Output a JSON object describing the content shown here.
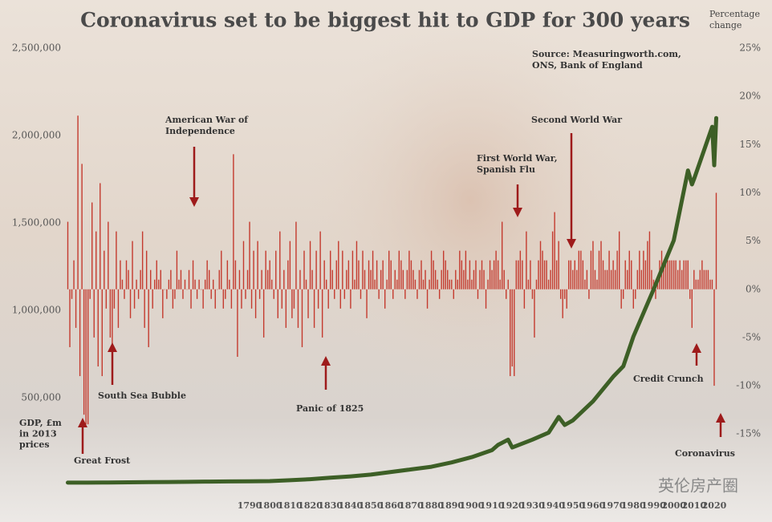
{
  "chart_data": {
    "type": "bar-line",
    "title": "Coronavirus set to be biggest hit to GDP for 300 years",
    "y_label": [
      "GDP, £m",
      "in 2013",
      "prices"
    ],
    "y2_label": [
      "Percentage",
      "change"
    ],
    "source": [
      "Source: Measuringworth.com,",
      "ONS, Bank of England"
    ],
    "watermark": "英伦房产圈",
    "xlim": [
      1700,
      2021
    ],
    "xticks": [
      1790,
      1800,
      1810,
      1820,
      1830,
      1840,
      1850,
      1860,
      1870,
      1880,
      1890,
      1900,
      1910,
      1920,
      1930,
      1940,
      1950,
      1960,
      1970,
      1980,
      1990,
      2000,
      2010,
      2020
    ],
    "ylim": [
      0,
      2500000
    ],
    "yticks": [
      {
        "value": 500000,
        "label": "500,000"
      },
      {
        "value": 1000000,
        "label": "1,000,000"
      },
      {
        "value": 1500000,
        "label": "1,500,000"
      },
      {
        "value": 2000000,
        "label": "2,000,000"
      },
      {
        "value": 2500000,
        "label": "2,500,000"
      }
    ],
    "y2lim": [
      -20.3,
      25
    ],
    "y2ticks": [
      {
        "value": -15,
        "label": "-15%"
      },
      {
        "value": -10,
        "label": "-10%"
      },
      {
        "value": -5,
        "label": "-5%"
      },
      {
        "value": 0,
        "label": "0%"
      },
      {
        "value": 5,
        "label": "5%"
      },
      {
        "value": 10,
        "label": "10%"
      },
      {
        "value": 15,
        "label": "15%"
      },
      {
        "value": 20,
        "label": "20%"
      },
      {
        "value": 25,
        "label": "25%"
      }
    ],
    "series": [
      {
        "type": "bar",
        "axis": "y2",
        "color": "#c43a2e",
        "x": [
          1700,
          1701,
          1702,
          1703,
          1704,
          1705,
          1706,
          1707,
          1708,
          1709,
          1710,
          1711,
          1712,
          1713,
          1714,
          1715,
          1716,
          1717,
          1718,
          1719,
          1720,
          1721,
          1722,
          1723,
          1724,
          1725,
          1726,
          1727,
          1728,
          1729,
          1730,
          1731,
          1732,
          1733,
          1734,
          1735,
          1736,
          1737,
          1738,
          1739,
          1740,
          1741,
          1742,
          1743,
          1744,
          1745,
          1746,
          1747,
          1748,
          1749,
          1750,
          1751,
          1752,
          1753,
          1754,
          1755,
          1756,
          1757,
          1758,
          1759,
          1760,
          1761,
          1762,
          1763,
          1764,
          1765,
          1766,
          1767,
          1768,
          1769,
          1770,
          1771,
          1772,
          1773,
          1774,
          1775,
          1776,
          1777,
          1778,
          1779,
          1780,
          1781,
          1782,
          1783,
          1784,
          1785,
          1786,
          1787,
          1788,
          1789,
          1790,
          1791,
          1792,
          1793,
          1794,
          1795,
          1796,
          1797,
          1798,
          1799,
          1800,
          1801,
          1802,
          1803,
          1804,
          1805,
          1806,
          1807,
          1808,
          1809,
          1810,
          1811,
          1812,
          1813,
          1814,
          1815,
          1816,
          1817,
          1818,
          1819,
          1820,
          1821,
          1822,
          1823,
          1824,
          1825,
          1826,
          1827,
          1828,
          1829,
          1830,
          1831,
          1832,
          1833,
          1834,
          1835,
          1836,
          1837,
          1838,
          1839,
          1840,
          1841,
          1842,
          1843,
          1844,
          1845,
          1846,
          1847,
          1848,
          1849,
          1850,
          1851,
          1852,
          1853,
          1854,
          1855,
          1856,
          1857,
          1858,
          1859,
          1860,
          1861,
          1862,
          1863,
          1864,
          1865,
          1866,
          1867,
          1868,
          1869,
          1870,
          1871,
          1872,
          1873,
          1874,
          1875,
          1876,
          1877,
          1878,
          1879,
          1880,
          1881,
          1882,
          1883,
          1884,
          1885,
          1886,
          1887,
          1888,
          1889,
          1890,
          1891,
          1892,
          1893,
          1894,
          1895,
          1896,
          1897,
          1898,
          1899,
          1900,
          1901,
          1902,
          1903,
          1904,
          1905,
          1906,
          1907,
          1908,
          1909,
          1910,
          1911,
          1912,
          1913,
          1914,
          1915,
          1916,
          1917,
          1918,
          1919,
          1920,
          1921,
          1922,
          1923,
          1924,
          1925,
          1926,
          1927,
          1928,
          1929,
          1930,
          1931,
          1932,
          1933,
          1934,
          1935,
          1936,
          1937,
          1938,
          1939,
          1940,
          1941,
          1942,
          1943,
          1944,
          1945,
          1946,
          1947,
          1948,
          1949,
          1950,
          1951,
          1952,
          1953,
          1954,
          1955,
          1956,
          1957,
          1958,
          1959,
          1960,
          1961,
          1962,
          1963,
          1964,
          1965,
          1966,
          1967,
          1968,
          1969,
          1970,
          1971,
          1972,
          1973,
          1974,
          1975,
          1976,
          1977,
          1978,
          1979,
          1980,
          1981,
          1982,
          1983,
          1984,
          1985,
          1986,
          1987,
          1988,
          1989,
          1990,
          1991,
          1992,
          1993,
          1994,
          1995,
          1996,
          1997,
          1998,
          1999,
          2000,
          2001,
          2002,
          2003,
          2004,
          2005,
          2006,
          2007,
          2008,
          2009,
          2010,
          2011,
          2012,
          2013,
          2014,
          2015,
          2016,
          2017,
          2018,
          2019,
          2020,
          2021
        ],
        "values": [
          7,
          -6,
          -1,
          3,
          -4,
          18,
          -9,
          13,
          -13,
          -14,
          -14,
          -1,
          9,
          -5,
          6,
          -8,
          11,
          -9,
          4,
          -2,
          7,
          -5,
          -6,
          -2,
          6,
          -4,
          3,
          1,
          -1,
          3,
          2,
          -3,
          5,
          -2,
          1,
          -1,
          2,
          6,
          -4,
          4,
          -6,
          2,
          -2,
          1,
          3,
          1,
          2,
          -3,
          0,
          -1,
          1,
          2,
          -2,
          -1,
          4,
          1,
          2,
          -1,
          1,
          0,
          2,
          -2,
          3,
          1,
          -1,
          1,
          0,
          -2,
          1,
          3,
          2,
          -1,
          1,
          -2,
          0,
          2,
          4,
          -2,
          -1,
          3,
          1,
          -2,
          14,
          3,
          -7,
          2,
          -2,
          5,
          -1,
          2,
          7,
          -2,
          4,
          -3,
          5,
          -1,
          2,
          -5,
          4,
          2,
          3,
          1,
          -1,
          4,
          -3,
          6,
          -2,
          2,
          -4,
          3,
          5,
          -3,
          -2,
          7,
          -4,
          2,
          -6,
          4,
          1,
          -3,
          5,
          2,
          -4,
          4,
          -2,
          6,
          -5,
          3,
          1,
          -2,
          4,
          2,
          -1,
          3,
          5,
          -2,
          4,
          -1,
          2,
          3,
          -2,
          4,
          1,
          5,
          3,
          -1,
          4,
          2,
          -3,
          3,
          2,
          4,
          1,
          3,
          -1,
          2,
          3,
          -2,
          1,
          4,
          3,
          -1,
          2,
          1,
          4,
          3,
          2,
          -1,
          2,
          4,
          3,
          2,
          1,
          -1,
          2,
          3,
          1,
          2,
          -2,
          1,
          4,
          3,
          2,
          1,
          -1,
          2,
          4,
          3,
          2,
          1,
          1,
          -1,
          2,
          1,
          4,
          3,
          2,
          4,
          1,
          3,
          1,
          2,
          3,
          -1,
          2,
          3,
          2,
          -2,
          1,
          3,
          2,
          3,
          4,
          3,
          1,
          7,
          2,
          -1,
          1,
          -9,
          -8,
          -9,
          3,
          3,
          4,
          3,
          -2,
          6,
          1,
          3,
          -1,
          -5,
          1,
          3,
          5,
          4,
          3,
          3,
          1,
          2,
          6,
          8,
          3,
          5,
          -1,
          -3,
          -1,
          -2,
          3,
          3,
          2,
          3,
          2,
          4,
          4,
          3,
          1,
          2,
          -1,
          4,
          5,
          2,
          1,
          4,
          5,
          3,
          2,
          2,
          4,
          2,
          3,
          2,
          4,
          6,
          -2,
          -1,
          3,
          2,
          4,
          3,
          -2,
          -1,
          2,
          4,
          2,
          4,
          3,
          5,
          6,
          2,
          1,
          -1,
          1,
          3,
          4,
          3,
          3,
          3,
          3,
          3,
          3,
          3,
          2,
          3,
          2,
          3,
          3,
          3,
          -1,
          -4,
          2,
          1,
          1,
          2,
          3,
          2,
          2,
          2,
          1,
          1,
          -10,
          10
        ]
      },
      {
        "type": "line",
        "axis": "y",
        "color": "#3d5f26",
        "x": [
          1700,
          1710,
          1720,
          1730,
          1740,
          1750,
          1760,
          1770,
          1780,
          1790,
          1800,
          1810,
          1820,
          1830,
          1840,
          1850,
          1860,
          1870,
          1880,
          1890,
          1900,
          1910,
          1913,
          1918,
          1920,
          1930,
          1938,
          1943,
          1946,
          1950,
          1960,
          1970,
          1975,
          1980,
          1990,
          2000,
          2007,
          2009,
          2010,
          2019,
          2020,
          2021
        ],
        "values": [
          14000,
          14000,
          15000,
          16000,
          17000,
          18000,
          19000,
          20000,
          21000,
          22000,
          23000,
          28000,
          34000,
          42000,
          50000,
          60000,
          75000,
          90000,
          105000,
          130000,
          160000,
          200000,
          230000,
          260000,
          215000,
          260000,
          300000,
          390000,
          344000,
          370000,
          480000,
          620000,
          680000,
          850000,
          1120000,
          1400000,
          1800000,
          1720000,
          1750000,
          2050000,
          1830000,
          2100000
        ]
      }
    ],
    "annotations": [
      {
        "text": [
          "Great Frost"
        ]
      },
      {
        "text": [
          "South Sea Bubble"
        ]
      },
      {
        "text": [
          "American War of",
          "Independence"
        ]
      },
      {
        "text": [
          "Panic of 1825"
        ]
      },
      {
        "text": [
          "First World War,",
          "Spanish Flu"
        ]
      },
      {
        "text": [
          "Second World War"
        ]
      },
      {
        "text": [
          "Credit Crunch"
        ]
      },
      {
        "text": [
          "Coronavirus"
        ]
      }
    ]
  }
}
